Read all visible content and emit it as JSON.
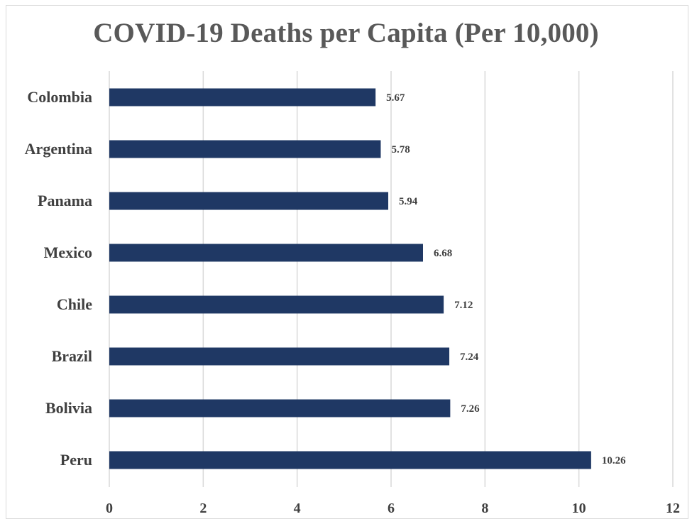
{
  "chart_data": {
    "type": "bar",
    "orientation": "horizontal",
    "title": "COVID-19 Deaths per Capita (Per 10,000)",
    "categories": [
      "Colombia",
      "Argentina",
      "Panama",
      "Mexico",
      "Chile",
      "Brazil",
      "Bolivia",
      "Peru"
    ],
    "values": [
      5.67,
      5.78,
      5.94,
      6.68,
      7.12,
      7.24,
      7.26,
      10.26
    ],
    "data_labels": [
      "5.67",
      "5.78",
      "5.94",
      "6.68",
      "7.12",
      "7.24",
      "7.26",
      "10.26"
    ],
    "xlim": [
      0,
      12
    ],
    "x_ticks": [
      "0",
      "2",
      "4",
      "6",
      "8",
      "10",
      "12"
    ],
    "grid": true,
    "legend": "none",
    "colors": {
      "bar": "#1f3864",
      "grid": "#d9d9d9",
      "text": "#404040",
      "title": "#595959"
    }
  }
}
